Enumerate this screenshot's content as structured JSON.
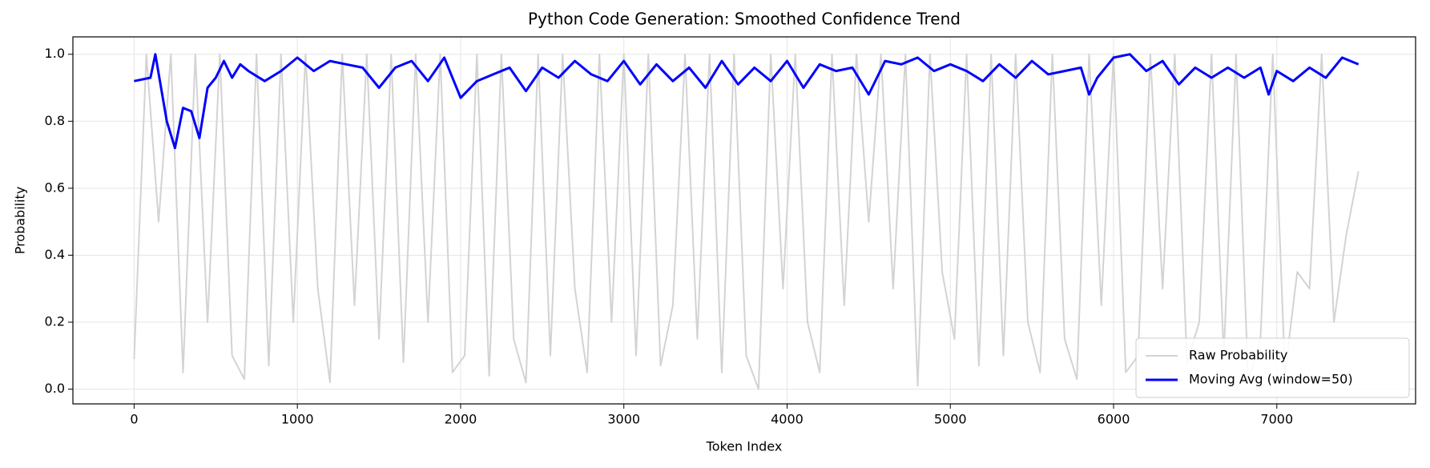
{
  "chart_data": {
    "type": "line",
    "title": "Python Code Generation: Smoothed Confidence Trend",
    "xlabel": "Token Index",
    "ylabel": "Probability",
    "xlim": [
      -375,
      7850
    ],
    "ylim": [
      -0.044,
      1.052
    ],
    "xticks": [
      0,
      1000,
      2000,
      3000,
      4000,
      5000,
      6000,
      7000
    ],
    "yticks": [
      {
        "value": 0,
        "label": "0.0"
      },
      0.2,
      0.4,
      0.6,
      0.8,
      {
        "value": 1,
        "label": "1.0"
      }
    ],
    "grid": true,
    "legend": "lower right",
    "series": [
      {
        "name": "Raw Probability",
        "color": "#d3d3d3",
        "x": [
          0,
          75,
          150,
          225,
          300,
          375,
          450,
          525,
          600,
          675,
          750,
          825,
          900,
          975,
          1050,
          1125,
          1200,
          1275,
          1350,
          1425,
          1500,
          1575,
          1650,
          1725,
          1800,
          1875,
          1950,
          2025,
          2100,
          2175,
          2250,
          2325,
          2400,
          2475,
          2550,
          2625,
          2700,
          2775,
          2850,
          2925,
          3000,
          3075,
          3150,
          3225,
          3300,
          3375,
          3450,
          3525,
          3600,
          3675,
          3750,
          3825,
          3900,
          3975,
          4050,
          4125,
          4200,
          4275,
          4350,
          4425,
          4500,
          4575,
          4650,
          4725,
          4800,
          4875,
          4950,
          5025,
          5100,
          5175,
          5250,
          5325,
          5400,
          5475,
          5550,
          5625,
          5700,
          5775,
          5850,
          5925,
          6000,
          6075,
          6150,
          6225,
          6300,
          6375,
          6450,
          6525,
          6600,
          6675,
          6750,
          6825,
          6900,
          6975,
          7050,
          7125,
          7200,
          7275,
          7350,
          7425,
          7500
        ],
        "values": [
          0.09,
          1.0,
          0.5,
          1.0,
          0.05,
          1.0,
          0.2,
          1.0,
          0.1,
          0.03,
          1.0,
          0.07,
          1.0,
          0.2,
          1.0,
          0.3,
          0.02,
          1.0,
          0.25,
          1.0,
          0.15,
          1.0,
          0.08,
          1.0,
          0.2,
          1.0,
          0.05,
          0.1,
          1.0,
          0.04,
          1.0,
          0.15,
          0.02,
          1.0,
          0.1,
          1.0,
          0.3,
          0.05,
          1.0,
          0.2,
          1.0,
          0.1,
          1.0,
          0.07,
          0.25,
          1.0,
          0.15,
          1.0,
          0.05,
          1.0,
          0.1,
          0.0,
          1.0,
          0.3,
          1.0,
          0.2,
          0.05,
          1.0,
          0.25,
          1.0,
          0.5,
          1.0,
          0.3,
          1.0,
          0.01,
          1.0,
          0.35,
          0.15,
          1.0,
          0.07,
          1.0,
          0.1,
          1.0,
          0.2,
          0.05,
          1.0,
          0.15,
          0.03,
          1.0,
          0.25,
          1.0,
          0.05,
          0.1,
          1.0,
          0.3,
          1.0,
          0.08,
          0.2,
          1.0,
          0.1,
          1.0,
          0.02,
          0.15,
          1.0,
          0.05,
          0.35,
          0.3,
          1.0,
          0.2,
          0.46,
          0.65
        ]
      },
      {
        "name": "Moving Avg (window=50)",
        "color": "#0000ff",
        "x": [
          0,
          100,
          130,
          200,
          250,
          300,
          350,
          400,
          450,
          500,
          550,
          600,
          650,
          700,
          800,
          900,
          1000,
          1100,
          1200,
          1300,
          1400,
          1500,
          1600,
          1700,
          1800,
          1900,
          2000,
          2100,
          2200,
          2300,
          2400,
          2500,
          2600,
          2700,
          2800,
          2900,
          3000,
          3100,
          3200,
          3300,
          3400,
          3500,
          3600,
          3700,
          3800,
          3900,
          4000,
          4100,
          4200,
          4300,
          4400,
          4500,
          4600,
          4700,
          4800,
          4900,
          5000,
          5100,
          5200,
          5300,
          5400,
          5500,
          5600,
          5700,
          5800,
          5850,
          5900,
          6000,
          6100,
          6200,
          6300,
          6400,
          6500,
          6600,
          6700,
          6800,
          6900,
          6950,
          7000,
          7100,
          7200,
          7300,
          7400,
          7500
        ],
        "values": [
          0.92,
          0.93,
          1.0,
          0.8,
          0.72,
          0.84,
          0.83,
          0.75,
          0.9,
          0.93,
          0.98,
          0.93,
          0.97,
          0.95,
          0.92,
          0.95,
          0.99,
          0.95,
          0.98,
          0.97,
          0.96,
          0.9,
          0.96,
          0.98,
          0.92,
          0.99,
          0.87,
          0.92,
          0.94,
          0.96,
          0.89,
          0.96,
          0.93,
          0.98,
          0.94,
          0.92,
          0.98,
          0.91,
          0.97,
          0.92,
          0.96,
          0.9,
          0.98,
          0.91,
          0.96,
          0.92,
          0.98,
          0.9,
          0.97,
          0.95,
          0.96,
          0.88,
          0.98,
          0.97,
          0.99,
          0.95,
          0.97,
          0.95,
          0.92,
          0.97,
          0.93,
          0.98,
          0.94,
          0.95,
          0.96,
          0.88,
          0.93,
          0.99,
          1.0,
          0.95,
          0.98,
          0.91,
          0.96,
          0.93,
          0.96,
          0.93,
          0.96,
          0.88,
          0.95,
          0.92,
          0.96,
          0.93,
          0.99,
          0.97
        ]
      }
    ]
  }
}
